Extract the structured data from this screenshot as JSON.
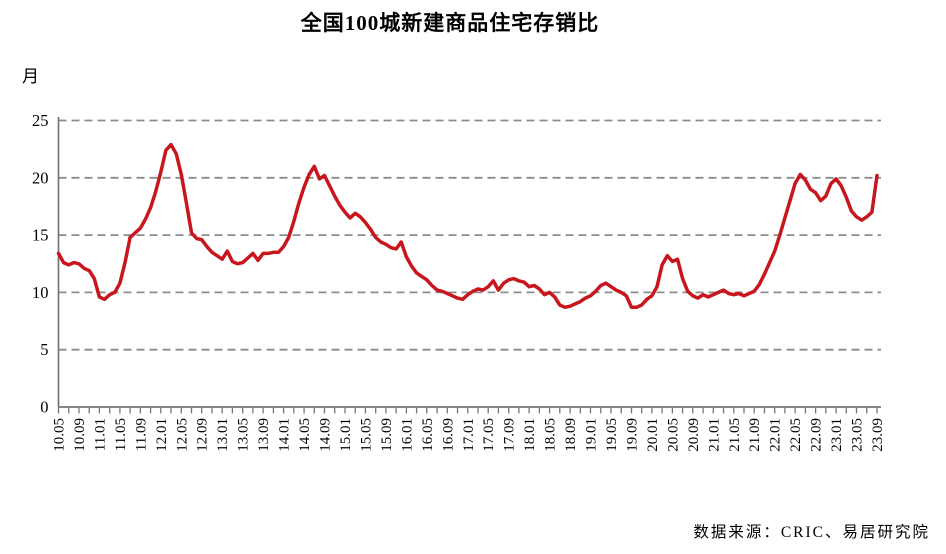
{
  "source_note": "数据来源：CRIC、易居研究院",
  "chart_data": {
    "type": "line",
    "title": "全国100城新建商品住宅存销比",
    "ylabel": "月",
    "xlabel": "",
    "ylim": [
      0,
      25
    ],
    "yticks": [
      0,
      5,
      10,
      15,
      20,
      25
    ],
    "grid": "horizontal-dashed",
    "legend": "none",
    "x_tick_every": 2,
    "x_label_every": 4,
    "line_color": "#c8161e",
    "grid_color": "#8c8c8c",
    "axis_color": "#767676",
    "series_name": "全国100城新建商品住宅存销比",
    "x": [
      "10.05",
      "10.06",
      "10.07",
      "10.08",
      "10.09",
      "10.10",
      "10.11",
      "10.12",
      "11.01",
      "11.02",
      "11.03",
      "11.04",
      "11.05",
      "11.06",
      "11.07",
      "11.08",
      "11.09",
      "11.10",
      "11.11",
      "11.12",
      "12.01",
      "12.02",
      "12.03",
      "12.04",
      "12.05",
      "12.06",
      "12.07",
      "12.08",
      "12.09",
      "12.10",
      "12.11",
      "12.12",
      "13.01",
      "13.02",
      "13.03",
      "13.04",
      "13.05",
      "13.06",
      "13.07",
      "13.08",
      "13.09",
      "13.10",
      "13.11",
      "13.12",
      "14.01",
      "14.02",
      "14.03",
      "14.04",
      "14.05",
      "14.06",
      "14.07",
      "14.08",
      "14.09",
      "14.10",
      "14.11",
      "14.12",
      "15.01",
      "15.02",
      "15.03",
      "15.04",
      "15.05",
      "15.06",
      "15.07",
      "15.08",
      "15.09",
      "15.10",
      "15.11",
      "15.12",
      "16.01",
      "16.02",
      "16.03",
      "16.04",
      "16.05",
      "16.06",
      "16.07",
      "16.08",
      "16.09",
      "16.10",
      "16.11",
      "16.12",
      "17.01",
      "17.02",
      "17.03",
      "17.04",
      "17.05",
      "17.06",
      "17.07",
      "17.08",
      "17.09",
      "17.10",
      "17.11",
      "17.12",
      "18.01",
      "18.02",
      "18.03",
      "18.04",
      "18.05",
      "18.06",
      "18.07",
      "18.08",
      "18.09",
      "18.10",
      "18.11",
      "18.12",
      "19.01",
      "19.02",
      "19.03",
      "19.04",
      "19.05",
      "19.06",
      "19.07",
      "19.08",
      "19.09",
      "19.10",
      "19.11",
      "19.12",
      "20.01",
      "20.02",
      "20.03",
      "20.04",
      "20.05",
      "20.06",
      "20.07",
      "20.08",
      "20.09",
      "20.10",
      "20.11",
      "20.12",
      "21.01",
      "21.02",
      "21.03",
      "21.04",
      "21.05",
      "21.06",
      "21.07",
      "21.08",
      "21.09",
      "21.10",
      "21.11",
      "21.12",
      "22.01",
      "22.02",
      "22.03",
      "22.04",
      "22.05",
      "22.06",
      "22.07",
      "22.08",
      "22.09",
      "22.10",
      "22.11",
      "22.12",
      "23.01",
      "23.02",
      "23.03",
      "23.04",
      "23.05",
      "23.06",
      "23.07",
      "23.08",
      "23.09"
    ],
    "values": [
      13.4,
      12.6,
      12.4,
      12.6,
      12.5,
      12.1,
      11.9,
      11.2,
      9.6,
      9.4,
      9.8,
      10.0,
      10.8,
      12.6,
      14.8,
      15.2,
      15.6,
      16.4,
      17.4,
      18.8,
      20.5,
      22.4,
      22.9,
      22.1,
      20.3,
      17.8,
      15.2,
      14.7,
      14.6,
      14.0,
      13.5,
      13.2,
      12.9,
      13.6,
      12.7,
      12.5,
      12.6,
      13.0,
      13.4,
      12.8,
      13.4,
      13.4,
      13.5,
      13.5,
      14.0,
      14.8,
      16.2,
      17.8,
      19.2,
      20.3,
      21.0,
      19.9,
      20.2,
      19.3,
      18.4,
      17.6,
      17.0,
      16.5,
      16.9,
      16.6,
      16.1,
      15.5,
      14.8,
      14.4,
      14.2,
      13.9,
      13.8,
      14.4,
      13.1,
      12.3,
      11.7,
      11.4,
      11.1,
      10.6,
      10.2,
      10.1,
      9.9,
      9.7,
      9.5,
      9.4,
      9.8,
      10.1,
      10.3,
      10.2,
      10.5,
      11.0,
      10.2,
      10.8,
      11.1,
      11.2,
      11.0,
      10.9,
      10.5,
      10.6,
      10.3,
      9.8,
      10.0,
      9.6,
      8.9,
      8.7,
      8.8,
      9.0,
      9.2,
      9.5,
      9.7,
      10.1,
      10.6,
      10.8,
      10.5,
      10.2,
      10.0,
      9.7,
      8.7,
      8.7,
      8.9,
      9.4,
      9.7,
      10.5,
      12.4,
      13.2,
      12.7,
      12.9,
      11.2,
      10.1,
      9.7,
      9.5,
      9.8,
      9.6,
      9.8,
      10.0,
      10.2,
      9.9,
      9.8,
      9.9,
      9.7,
      9.9,
      10.1,
      10.7,
      11.6,
      12.6,
      13.6,
      15.0,
      16.5,
      18.0,
      19.5,
      20.3,
      19.8,
      19.0,
      18.7,
      18.0,
      18.4,
      19.5,
      19.9,
      19.3,
      18.3,
      17.1,
      16.6,
      16.3,
      16.6,
      17.0,
      20.2
    ]
  }
}
